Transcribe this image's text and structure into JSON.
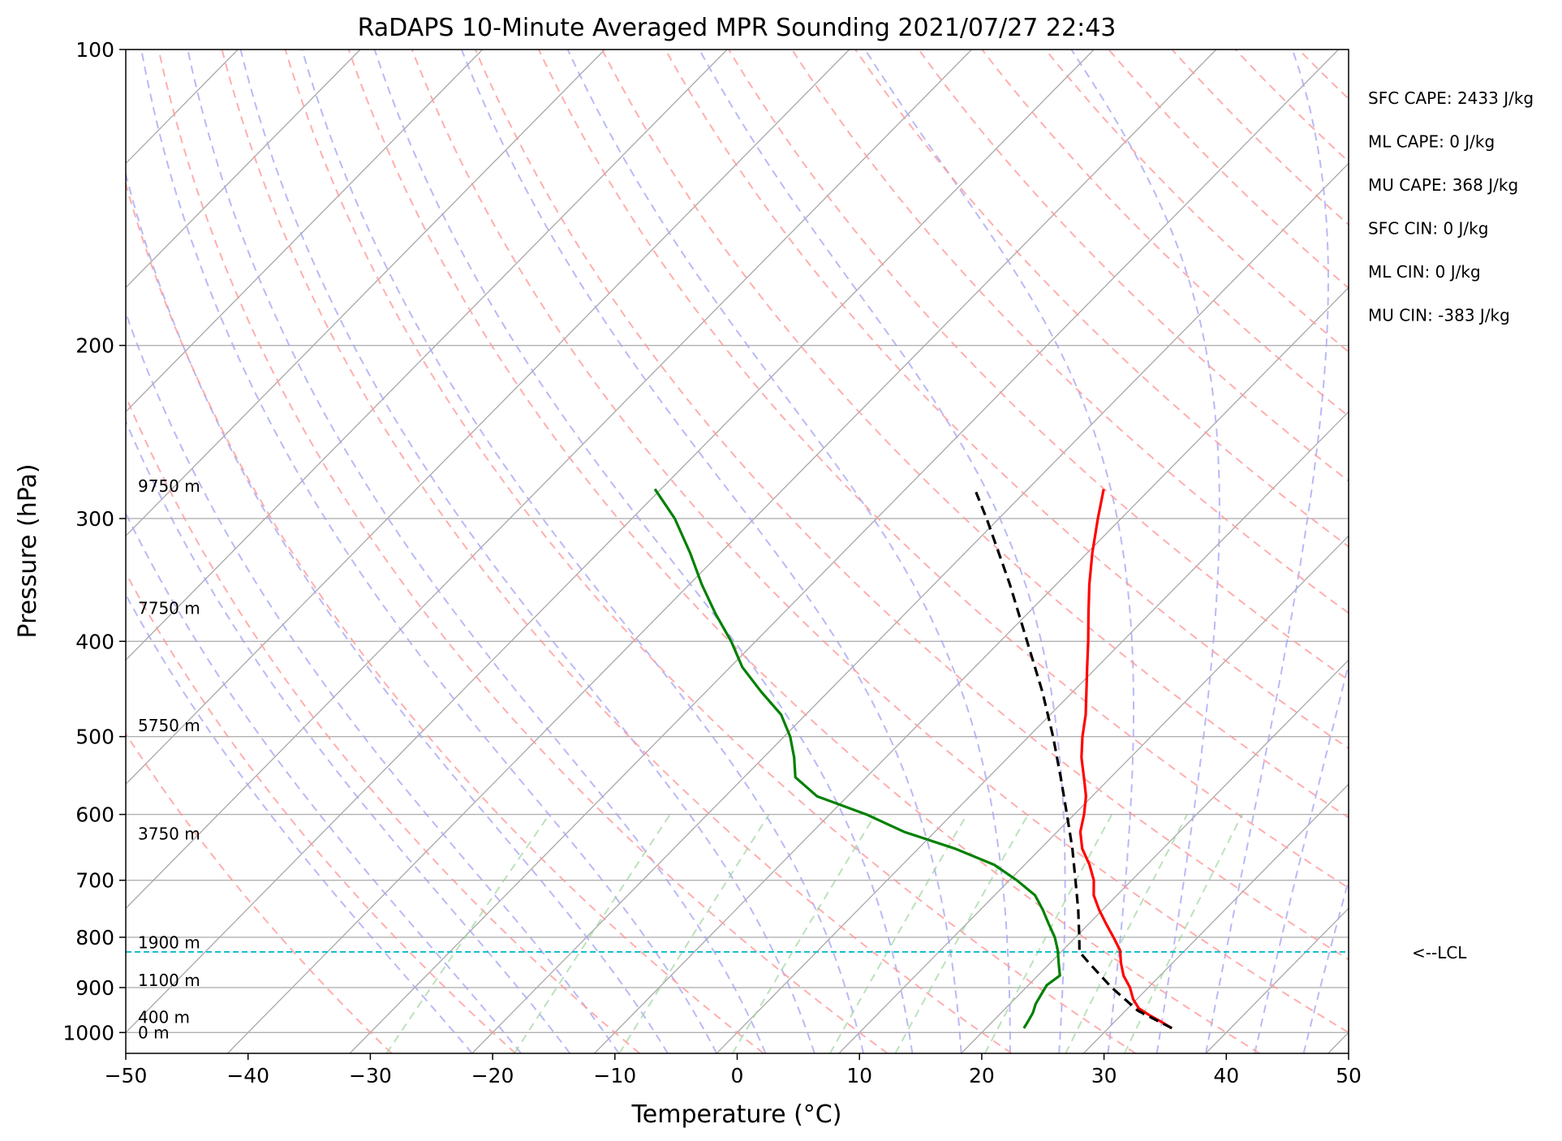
{
  "chart_data": {
    "type": "line",
    "title": "RaDAPS 10-Minute Averaged MPR Sounding 2021/07/27 22:43",
    "xlabel": "Temperature (°C)",
    "ylabel": "Pressure (hPa)",
    "xlim": [
      -50,
      50
    ],
    "ylim": [
      1050,
      100
    ],
    "y_scale": "log",
    "x_ticks": [
      "−50",
      "−40",
      "−30",
      "−20",
      "−10",
      "0",
      "10",
      "20",
      "30",
      "40",
      "50"
    ],
    "x_tick_values": [
      -50,
      -40,
      -30,
      -20,
      -10,
      0,
      10,
      20,
      30,
      40,
      50
    ],
    "y_ticks": [
      "100",
      "200",
      "300",
      "400",
      "500",
      "600",
      "700",
      "800",
      "900",
      "1000"
    ],
    "y_tick_values": [
      100,
      200,
      300,
      400,
      500,
      600,
      700,
      800,
      900,
      1000
    ],
    "grid": true,
    "stats": [
      "SFC CAPE: 2433 J/kg",
      "ML CAPE: 0 J/kg",
      "MU CAPE: 368 J/kg",
      "SFC CIN: 0 J/kg",
      "ML CIN: 0 J/kg",
      "MU CIN: -383 J/kg"
    ],
    "lcl_label": "<--LCL",
    "lcl_pressure": 828,
    "height_labels": [
      {
        "text": "9750 m",
        "p": 278
      },
      {
        "text": "7750 m",
        "p": 370
      },
      {
        "text": "5750 m",
        "p": 487
      },
      {
        "text": "3750 m",
        "p": 628
      },
      {
        "text": "1900 m",
        "p": 810
      },
      {
        "text": "1100 m",
        "p": 885
      },
      {
        "text": "400 m",
        "p": 965
      },
      {
        "text": "0 m",
        "p": 1000
      }
    ],
    "series": [
      {
        "name": "temperature",
        "color": "#ff0000",
        "points": [
          {
            "p": 990,
            "t": 35.2
          },
          {
            "p": 975,
            "t": 33.8
          },
          {
            "p": 960,
            "t": 32.3
          },
          {
            "p": 945,
            "t": 30.9
          },
          {
            "p": 925,
            "t": 29.7
          },
          {
            "p": 900,
            "t": 28.5
          },
          {
            "p": 875,
            "t": 27.0
          },
          {
            "p": 850,
            "t": 25.8
          },
          {
            "p": 825,
            "t": 24.7
          },
          {
            "p": 800,
            "t": 23.1
          },
          {
            "p": 775,
            "t": 21.4
          },
          {
            "p": 750,
            "t": 19.7
          },
          {
            "p": 725,
            "t": 18.1
          },
          {
            "p": 700,
            "t": 16.9
          },
          {
            "p": 675,
            "t": 15.3
          },
          {
            "p": 650,
            "t": 13.4
          },
          {
            "p": 625,
            "t": 11.9
          },
          {
            "p": 600,
            "t": 10.8
          },
          {
            "p": 575,
            "t": 9.5
          },
          {
            "p": 550,
            "t": 7.8
          },
          {
            "p": 525,
            "t": 6.0
          },
          {
            "p": 500,
            "t": 4.4
          },
          {
            "p": 475,
            "t": 2.9
          },
          {
            "p": 450,
            "t": 1.1
          },
          {
            "p": 425,
            "t": -0.8
          },
          {
            "p": 400,
            "t": -2.8
          },
          {
            "p": 375,
            "t": -5.0
          },
          {
            "p": 350,
            "t": -7.3
          },
          {
            "p": 325,
            "t": -9.6
          },
          {
            "p": 300,
            "t": -11.9
          },
          {
            "p": 280,
            "t": -13.8
          }
        ]
      },
      {
        "name": "dewpoint",
        "color": "#008000",
        "points": [
          {
            "p": 990,
            "t": 23.1
          },
          {
            "p": 975,
            "t": 22.9
          },
          {
            "p": 955,
            "t": 22.6
          },
          {
            "p": 935,
            "t": 22.1
          },
          {
            "p": 915,
            "t": 21.8
          },
          {
            "p": 895,
            "t": 21.5
          },
          {
            "p": 875,
            "t": 21.8
          },
          {
            "p": 850,
            "t": 20.7
          },
          {
            "p": 825,
            "t": 19.6
          },
          {
            "p": 800,
            "t": 18.3
          },
          {
            "p": 775,
            "t": 16.7
          },
          {
            "p": 750,
            "t": 15.1
          },
          {
            "p": 725,
            "t": 13.3
          },
          {
            "p": 700,
            "t": 10.6
          },
          {
            "p": 675,
            "t": 7.5
          },
          {
            "p": 650,
            "t": 3.0
          },
          {
            "p": 625,
            "t": -2.5
          },
          {
            "p": 600,
            "t": -7.0
          },
          {
            "p": 575,
            "t": -12.5
          },
          {
            "p": 550,
            "t": -15.8
          },
          {
            "p": 525,
            "t": -17.5
          },
          {
            "p": 500,
            "t": -19.5
          },
          {
            "p": 475,
            "t": -22.0
          },
          {
            "p": 450,
            "t": -25.5
          },
          {
            "p": 425,
            "t": -29.0
          },
          {
            "p": 400,
            "t": -32.0
          },
          {
            "p": 375,
            "t": -35.5
          },
          {
            "p": 350,
            "t": -39.0
          },
          {
            "p": 325,
            "t": -42.5
          },
          {
            "p": 300,
            "t": -46.5
          },
          {
            "p": 280,
            "t": -50.5
          }
        ]
      },
      {
        "name": "parcel",
        "color": "#000000",
        "points": [
          {
            "p": 990,
            "t": 35.2
          },
          {
            "p": 950,
            "t": 31.0
          },
          {
            "p": 900,
            "t": 27.0
          },
          {
            "p": 850,
            "t": 23.2
          },
          {
            "p": 828,
            "t": 21.5
          },
          {
            "p": 800,
            "t": 20.3
          },
          {
            "p": 750,
            "t": 18.0
          },
          {
            "p": 700,
            "t": 15.4
          },
          {
            "p": 650,
            "t": 12.6
          },
          {
            "p": 600,
            "t": 9.4
          },
          {
            "p": 550,
            "t": 5.9
          },
          {
            "p": 500,
            "t": 2.0
          },
          {
            "p": 450,
            "t": -2.5
          },
          {
            "p": 400,
            "t": -7.8
          },
          {
            "p": 350,
            "t": -13.8
          },
          {
            "p": 300,
            "t": -21.0
          },
          {
            "p": 282,
            "t": -24.0
          }
        ]
      }
    ]
  }
}
